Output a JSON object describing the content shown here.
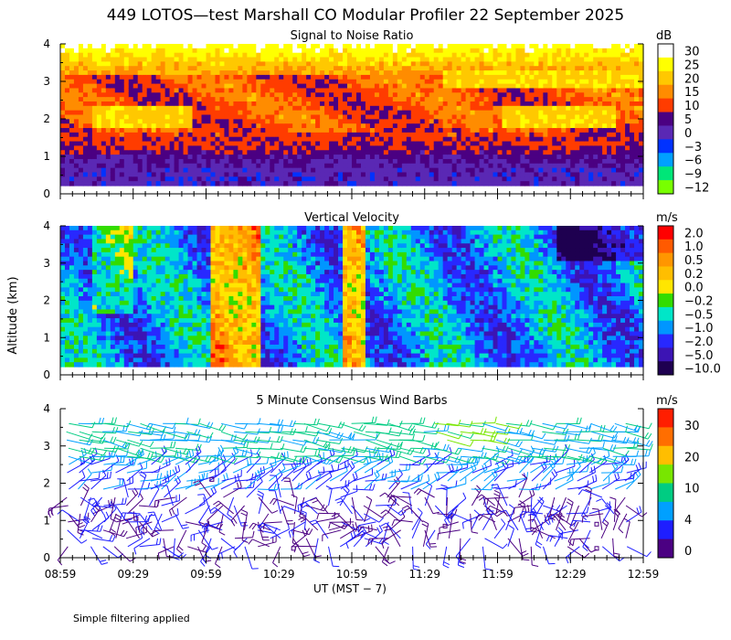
{
  "title": "449 LOTOS—test Marshall CO Modular Profiler 22 September 2025",
  "ylabel": "Altitude (km)",
  "xlabel": "UT  (MST − 7)",
  "note": "Simple filtering applied",
  "chart_data": [
    {
      "type": "heatmap",
      "title": "Signal to Noise Ratio",
      "unit": "dB",
      "x_tick_labels": [
        "08:59",
        "09:29",
        "09:59",
        "10:29",
        "10:59",
        "11:29",
        "11:59",
        "12:29",
        "12:59"
      ],
      "y_tick_labels": [
        "0",
        "1",
        "2",
        "3",
        "4"
      ],
      "ylim": [
        0,
        4
      ],
      "colorbar": {
        "labels": [
          "30",
          "25",
          "20",
          "15",
          "10",
          "5",
          "0",
          "−3",
          "−6",
          "−9",
          "−12"
        ],
        "colors": [
          "#ffffff",
          "#ffff00",
          "#ffc800",
          "#ff8c00",
          "#ff3c00",
          "#4b0082",
          "#5a28b4",
          "#0032ff",
          "#00a0ff",
          "#00e678",
          "#78ff00"
        ]
      }
    },
    {
      "type": "heatmap",
      "title": "Vertical Velocity",
      "unit": "m/s",
      "x_tick_labels": [
        "08:59",
        "09:29",
        "09:59",
        "10:29",
        "10:59",
        "11:29",
        "11:59",
        "12:29",
        "12:59"
      ],
      "y_tick_labels": [
        "0",
        "1",
        "2",
        "3",
        "4"
      ],
      "ylim": [
        0,
        4
      ],
      "colorbar": {
        "labels": [
          "2.0",
          "1.0",
          "0.5",
          "0.2",
          "0.0",
          "−0.2",
          "−0.5",
          "−1.0",
          "−2.0",
          "−5.0",
          "−10.0"
        ],
        "colors": [
          "#ff0000",
          "#ff5a00",
          "#ff9600",
          "#ffbe00",
          "#ffe600",
          "#32dc00",
          "#00e6c8",
          "#0096ff",
          "#2828ff",
          "#3c14b4",
          "#1e0050"
        ]
      }
    },
    {
      "type": "wind_barbs",
      "title": "5 Minute Consensus Wind Barbs",
      "unit": "m/s",
      "x_tick_labels": [
        "08:59",
        "09:29",
        "09:59",
        "10:29",
        "10:59",
        "11:29",
        "11:59",
        "12:29",
        "12:59"
      ],
      "y_tick_labels": [
        "0",
        "1",
        "2",
        "3",
        "4"
      ],
      "ylim": [
        0,
        4
      ],
      "colorbar": {
        "labels": [
          "30",
          "20",
          "10",
          "4",
          "0"
        ],
        "colors": [
          "#ff1e00",
          "#ff6e00",
          "#ffbe00",
          "#78e600",
          "#00cc82",
          "#00a0ff",
          "#1e1eff",
          "#4b0082"
        ]
      }
    }
  ]
}
